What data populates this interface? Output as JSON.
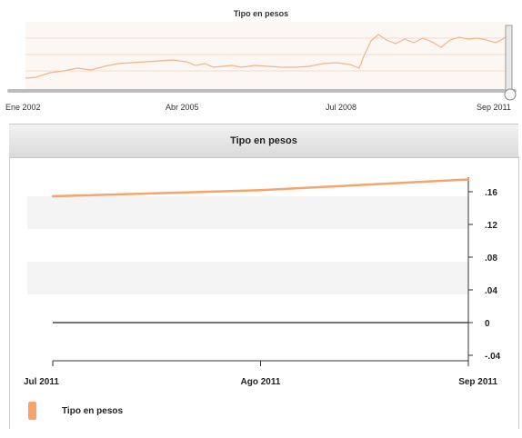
{
  "overview": {
    "title": "Tipo en pesos",
    "axis_labels": [
      "Ene 2002",
      "Abr 2005",
      "Jul 2008",
      "Sep 2011"
    ]
  },
  "detail": {
    "header": "Tipo en pesos",
    "legend_label": "Tipo en pesos",
    "line_color": "#f5a46a"
  },
  "chart_data": {
    "type": "line",
    "title": "Tipo en pesos",
    "x": [
      "Jul 2011",
      "Ago 2011",
      "Sep 2011"
    ],
    "y_tick_labels": [
      ".16",
      ".12",
      ".08",
      ".04",
      "0",
      "-.04"
    ],
    "ylim": [
      -0.04,
      0.18
    ],
    "grid": "banded",
    "legend": "bottom-left",
    "series": [
      {
        "name": "Tipo en pesos",
        "values": [
          0.1544,
          0.1619,
          0.175
        ]
      }
    ]
  }
}
